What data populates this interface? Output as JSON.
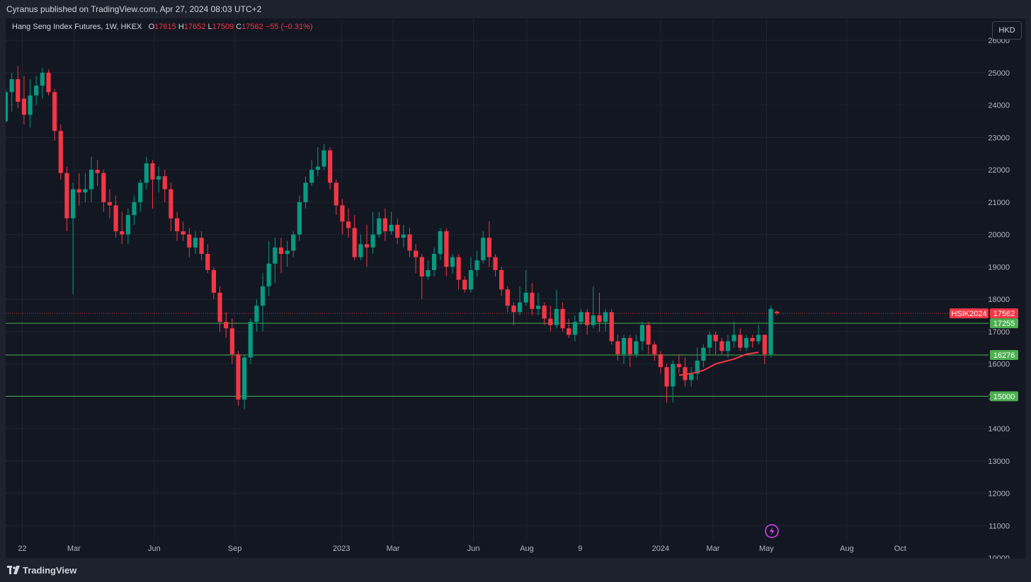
{
  "header": {
    "published": "Cyranus published on TradingView.com, Apr 27, 2024 08:03 UTC+2"
  },
  "legend": {
    "symbol": "Hang Seng Index Futures, 1W, HKEX",
    "open_label": "O",
    "open": "17615",
    "high_label": "H",
    "high": "17652",
    "low_label": "L",
    "low": "17509",
    "close_label": "C",
    "close": "17562",
    "change": "−55 (−0.31%)"
  },
  "currency_button": "HKD",
  "footer": {
    "brand": "TradingView"
  },
  "colors": {
    "up": "#089981",
    "down": "#f23645",
    "level_line": "#4caf50",
    "background": "#131722",
    "grid": "#1f2430",
    "text": "#b2b5be",
    "replay_icon": "#e040fb"
  },
  "chart_data": {
    "type": "candlestick",
    "title": "Hang Seng Index Futures, 1W, HKEX",
    "y_ticks": [
      10000,
      11000,
      12000,
      13000,
      14000,
      15000,
      16000,
      17000,
      18000,
      19000,
      20000,
      21000,
      22000,
      23000,
      24000,
      25000,
      26000
    ],
    "y_range": [
      9980,
      26680
    ],
    "x_range": [
      "2021-12-13",
      "2025-01-10"
    ],
    "x_ticks": [
      {
        "label": "22",
        "date": "2022-01-01"
      },
      {
        "label": "Mar",
        "date": "2022-03-01"
      },
      {
        "label": "Jun",
        "date": "2022-06-01"
      },
      {
        "label": "Sep",
        "date": "2022-09-01"
      },
      {
        "label": "2023",
        "date": "2023-01-01"
      },
      {
        "label": "Mar",
        "date": "2023-03-01"
      },
      {
        "label": "Jun",
        "date": "2023-06-01"
      },
      {
        "label": "Aug",
        "date": "2023-08-01"
      },
      {
        "label": "9",
        "date": "2023-10-01"
      },
      {
        "label": "2024",
        "date": "2024-01-01"
      },
      {
        "label": "Mar",
        "date": "2024-03-01"
      },
      {
        "label": "May",
        "date": "2024-05-01"
      },
      {
        "label": "Aug",
        "date": "2024-08-01"
      },
      {
        "label": "Oct",
        "date": "2024-10-01"
      }
    ],
    "first_week": "2021-12-13",
    "candles": [
      [
        23500,
        24400,
        24500,
        23450
      ],
      [
        24400,
        24800,
        25000,
        23800
      ],
      [
        24800,
        24100,
        25200,
        23900
      ],
      [
        24200,
        23700,
        24900,
        23400
      ],
      [
        23700,
        24300,
        24800,
        23300
      ],
      [
        24300,
        24600,
        24900,
        24000
      ],
      [
        24600,
        25000,
        25150,
        24200
      ],
      [
        25000,
        24400,
        25100,
        24300
      ],
      [
        24400,
        23200,
        24500,
        22900
      ],
      [
        23200,
        21900,
        23400,
        21700
      ],
      [
        21900,
        20500,
        22100,
        20100
      ],
      [
        20500,
        21400,
        21600,
        18150
      ],
      [
        21400,
        21300,
        21900,
        20900
      ],
      [
        21300,
        21400,
        21900,
        21000
      ],
      [
        21400,
        22000,
        22400,
        21000
      ],
      [
        22000,
        21900,
        22300,
        21500
      ],
      [
        21900,
        21000,
        22000,
        20700
      ],
      [
        21000,
        20900,
        21400,
        20500
      ],
      [
        20900,
        20100,
        21200,
        19900
      ],
      [
        20100,
        20000,
        20700,
        19700
      ],
      [
        20000,
        20600,
        20800,
        19700
      ],
      [
        20600,
        21000,
        21200,
        20300
      ],
      [
        21000,
        21600,
        21700,
        20700
      ],
      [
        21600,
        22200,
        22400,
        21400
      ],
      [
        22200,
        21700,
        22300,
        20800
      ],
      [
        21700,
        21800,
        22100,
        21300
      ],
      [
        21800,
        21400,
        22000,
        21000
      ],
      [
        21400,
        20500,
        21600,
        20100
      ],
      [
        20500,
        20100,
        20700,
        19800
      ],
      [
        20100,
        20000,
        20400,
        19800
      ],
      [
        20000,
        19600,
        20200,
        19300
      ],
      [
        19600,
        19900,
        20100,
        19400
      ],
      [
        19900,
        19400,
        20100,
        19200
      ],
      [
        19400,
        18900,
        19700,
        18800
      ],
      [
        18900,
        18200,
        19000,
        18000
      ],
      [
        18200,
        17300,
        18400,
        17000
      ],
      [
        17300,
        17100,
        17600,
        16800
      ],
      [
        17100,
        16300,
        17400,
        16000
      ],
      [
        16300,
        14900,
        16400,
        14700
      ],
      [
        14900,
        16200,
        16300,
        14600
      ],
      [
        16200,
        17300,
        17400,
        16000
      ],
      [
        17300,
        17800,
        18000,
        17000
      ],
      [
        17800,
        18400,
        18800,
        17000
      ],
      [
        18400,
        19100,
        19800,
        18100
      ],
      [
        19100,
        19600,
        19900,
        18500
      ],
      [
        19600,
        19400,
        19900,
        18800
      ],
      [
        19400,
        19500,
        19800,
        19000
      ],
      [
        19500,
        20000,
        20100,
        19300
      ],
      [
        20000,
        21000,
        21200,
        19800
      ],
      [
        21000,
        21600,
        21800,
        20800
      ],
      [
        21600,
        22000,
        22300,
        21500
      ],
      [
        22000,
        22100,
        22700,
        21800
      ],
      [
        22100,
        22600,
        22800,
        22000
      ],
      [
        22600,
        21600,
        22700,
        21400
      ],
      [
        21600,
        20900,
        21700,
        20600
      ],
      [
        20900,
        20400,
        21100,
        20000
      ],
      [
        20400,
        20200,
        20800,
        19900
      ],
      [
        20200,
        19300,
        20600,
        19200
      ],
      [
        19300,
        19700,
        20000,
        19200
      ],
      [
        19700,
        19600,
        20300,
        19000
      ],
      [
        19600,
        20000,
        20700,
        19400
      ],
      [
        20000,
        20500,
        20700,
        19900
      ],
      [
        20500,
        20100,
        20800,
        19800
      ],
      [
        20100,
        20300,
        20700,
        20000
      ],
      [
        20300,
        19900,
        20500,
        19700
      ],
      [
        19900,
        20000,
        20300,
        19600
      ],
      [
        20000,
        19500,
        20200,
        19300
      ],
      [
        19500,
        19300,
        19700,
        18800
      ],
      [
        19300,
        18700,
        19400,
        18000
      ],
      [
        18700,
        18900,
        19200,
        18600
      ],
      [
        18900,
        19400,
        19600,
        18700
      ],
      [
        19400,
        20100,
        20200,
        19200
      ],
      [
        20100,
        19000,
        20200,
        18700
      ],
      [
        19000,
        19300,
        19400,
        18800
      ],
      [
        19300,
        18600,
        19400,
        18300
      ],
      [
        18600,
        18300,
        18700,
        18200
      ],
      [
        18300,
        18900,
        19300,
        18200
      ],
      [
        18900,
        19200,
        19500,
        18700
      ],
      [
        19200,
        19900,
        20100,
        19100
      ],
      [
        19900,
        19300,
        20400,
        19000
      ],
      [
        19300,
        18900,
        19400,
        18700
      ],
      [
        18900,
        18300,
        19000,
        18100
      ],
      [
        18300,
        17800,
        18400,
        17600
      ],
      [
        17800,
        17600,
        17900,
        17200
      ],
      [
        17600,
        17900,
        18400,
        17500
      ],
      [
        17900,
        18200,
        18900,
        17800
      ],
      [
        18200,
        17700,
        18500,
        17500
      ],
      [
        17700,
        17800,
        18200,
        17500
      ],
      [
        17800,
        17400,
        17900,
        17200
      ],
      [
        17400,
        17200,
        17800,
        17000
      ],
      [
        17200,
        17700,
        18300,
        17100
      ],
      [
        17700,
        17100,
        17900,
        17000
      ],
      [
        17100,
        16900,
        17400,
        16800
      ],
      [
        16900,
        17300,
        17500,
        16700
      ],
      [
        17300,
        17600,
        17700,
        17200
      ],
      [
        17600,
        17200,
        17700,
        16900
      ],
      [
        17200,
        17500,
        18400,
        17100
      ],
      [
        17500,
        17300,
        18200,
        17000
      ],
      [
        17300,
        17600,
        17700,
        17000
      ],
      [
        17600,
        16700,
        17700,
        16600
      ],
      [
        16700,
        16300,
        16900,
        16100
      ],
      [
        16300,
        16800,
        16900,
        16000
      ],
      [
        16800,
        16300,
        16900,
        15900
      ],
      [
        16300,
        16700,
        16900,
        16200
      ],
      [
        16700,
        17200,
        17300,
        16400
      ],
      [
        17200,
        16600,
        17300,
        16300
      ],
      [
        16600,
        16300,
        16700,
        16100
      ],
      [
        16300,
        15900,
        16400,
        15700
      ],
      [
        15900,
        15300,
        16000,
        14800
      ],
      [
        15300,
        16000,
        16100,
        14800
      ],
      [
        16000,
        15900,
        16300,
        15700
      ],
      [
        15900,
        15500,
        16200,
        15300
      ],
      [
        15500,
        15700,
        15900,
        15300
      ],
      [
        15700,
        16100,
        16500,
        15500
      ],
      [
        16100,
        16500,
        16600,
        15900
      ],
      [
        16500,
        16900,
        17000,
        16300
      ],
      [
        16900,
        16700,
        17000,
        16300
      ],
      [
        16700,
        16400,
        16800,
        16300
      ],
      [
        16400,
        16700,
        16900,
        16200
      ],
      [
        16700,
        16900,
        17300,
        16500
      ],
      [
        16900,
        16500,
        17100,
        16400
      ],
      [
        16500,
        16800,
        16900,
        16400
      ],
      [
        16800,
        16700,
        16900,
        16500
      ],
      [
        16700,
        16900,
        17200,
        16600
      ],
      [
        16900,
        16300,
        16900,
        16000
      ],
      [
        16300,
        17700,
        17800,
        16200
      ],
      [
        17615,
        17562,
        17652,
        17509
      ]
    ],
    "moving_average": [
      [
        "2024-01-22",
        15650
      ],
      [
        "2024-02-05",
        15700
      ],
      [
        "2024-02-19",
        15800
      ],
      [
        "2024-03-04",
        16000
      ],
      [
        "2024-03-25",
        16150
      ],
      [
        "2024-04-08",
        16300
      ],
      [
        "2024-04-22",
        16360
      ]
    ],
    "levels": [
      {
        "value": 17255,
        "label": "17255"
      },
      {
        "value": 16276,
        "label": "16276"
      },
      {
        "value": 15000,
        "label": "15000"
      }
    ],
    "last_price": {
      "value": 17562,
      "label": "17562",
      "symbol_label": "HSIK2024"
    }
  }
}
